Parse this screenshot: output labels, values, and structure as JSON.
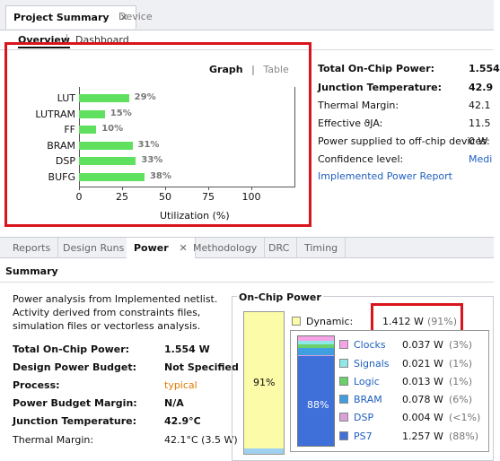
{
  "top_tabs": [
    {
      "label": "Project Summary",
      "close": "✕"
    },
    {
      "label": "Device",
      "close": ""
    }
  ],
  "sub_tabs": [
    "Overview",
    "Dashboard"
  ],
  "chart_panel": {
    "toggle_graph": "Graph",
    "toggle_sep": "|",
    "toggle_table": "Table"
  },
  "chart_data": {
    "type": "bar",
    "orientation": "horizontal",
    "categories": [
      "LUT",
      "LUTRAM",
      "FF",
      "BRAM",
      "DSP",
      "BUFG"
    ],
    "values": [
      29,
      15,
      10,
      31,
      33,
      38
    ],
    "value_labels": [
      "29%",
      "15%",
      "10%",
      "31%",
      "33%",
      "38%"
    ],
    "xlabel": "Utilization (%)",
    "xticks": [
      "0",
      "25",
      "50",
      "75",
      "100"
    ],
    "xlim": [
      0,
      125
    ],
    "color": "#5fe05f",
    "grid": false
  },
  "summary_top": [
    {
      "label": "Total On-Chip Power:",
      "value": "1.554",
      "bold": true
    },
    {
      "label": "Junction Temperature:",
      "value": "42.9",
      "bold": true
    },
    {
      "label": "Thermal Margin:",
      "value": "42.1",
      "bold": false
    },
    {
      "label": "Effective ϑJA:",
      "value": "11.5",
      "bold": false
    },
    {
      "label": "Power supplied to off-chip devices:",
      "value": "0 W",
      "bold": false
    },
    {
      "label": "Confidence level:",
      "value": "Medi",
      "bold": false,
      "link": true
    }
  ],
  "implemented_report_link": "Implemented Power Report",
  "bottom_tabs": [
    {
      "label": "Reports"
    },
    {
      "label": "Design Runs"
    },
    {
      "label": "Power",
      "close": "✕"
    },
    {
      "label": "Methodology"
    },
    {
      "label": "DRC"
    },
    {
      "label": "Timing"
    }
  ],
  "summary_title": "Summary",
  "summary_desc": "Power analysis from Implemented netlist. Activity derived from constraints files, simulation files or vectorless analysis.",
  "summary_rows": [
    {
      "label": "Total On-Chip Power:",
      "value": "1.554 W"
    },
    {
      "label": "Design Power Budget:",
      "value": "Not Specified"
    },
    {
      "label": "Process:",
      "value": "typical"
    },
    {
      "label": "Power Budget Margin:",
      "value": "N/A"
    },
    {
      "label": "Junction Temperature:",
      "value": "42.9°C"
    },
    {
      "label": "Thermal Margin:",
      "value": "42.1°C (3.5 W)"
    }
  ],
  "onchip": {
    "title": "On-Chip Power",
    "total_bar_label": "91%",
    "dynamic_label": "Dynamic:",
    "dynamic_value": "1.412 W",
    "dynamic_pct": "(91%)",
    "inner_bar_label": "88%",
    "items": [
      {
        "name": "Clocks",
        "value": "0.037 W",
        "pct": "(3%)",
        "color": "#f5a3e6"
      },
      {
        "name": "Signals",
        "value": "0.021 W",
        "pct": "(1%)",
        "color": "#8fe8e8"
      },
      {
        "name": "Logic",
        "value": "0.013 W",
        "pct": "(1%)",
        "color": "#6ad06a"
      },
      {
        "name": "BRAM",
        "value": "0.078 W",
        "pct": "(6%)",
        "color": "#3f9fe0"
      },
      {
        "name": "DSP",
        "value": "0.004 W",
        "pct": "(<1%)",
        "color": "#d9a0d9"
      },
      {
        "name": "PS7",
        "value": "1.257 W",
        "pct": "(88%)",
        "color": "#3f6fd9"
      }
    ]
  }
}
